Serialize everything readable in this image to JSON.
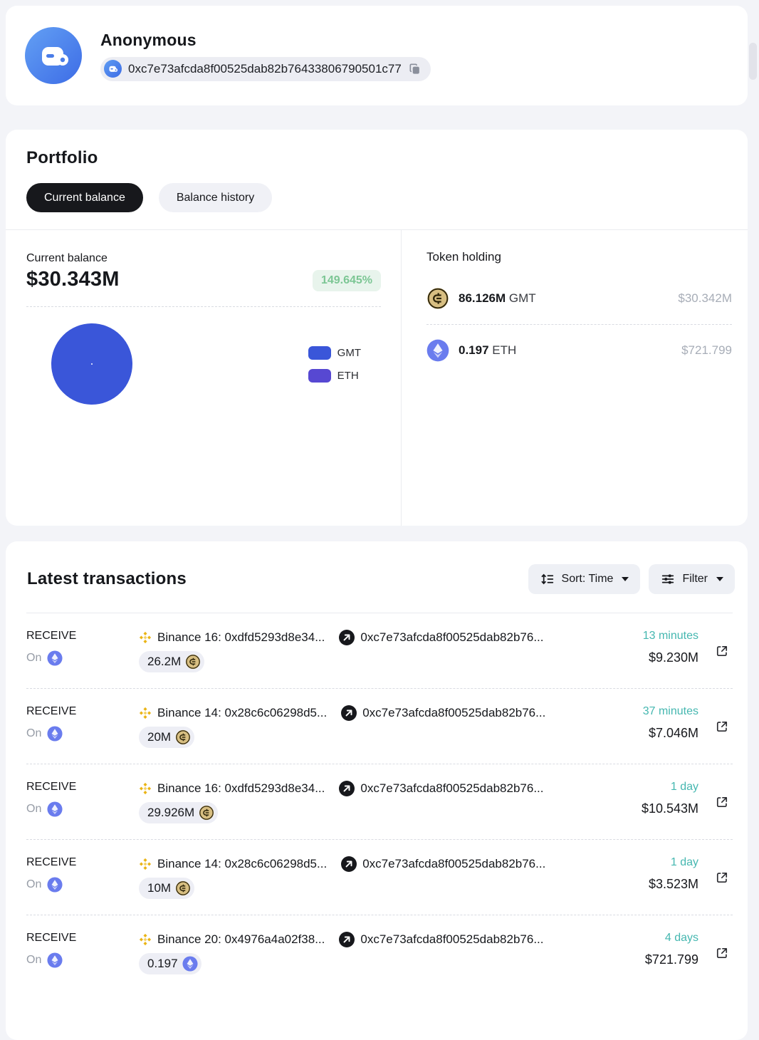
{
  "header": {
    "title": "Anonymous",
    "address": "0xc7e73afcda8f00525dab82b76433806790501c77"
  },
  "portfolio": {
    "title": "Portfolio",
    "tabs": [
      {
        "label": "Current balance"
      },
      {
        "label": "Balance history"
      }
    ],
    "current_balance": {
      "label": "Current balance",
      "value": "$30.343M",
      "change": "149.645%"
    },
    "legend": [
      {
        "label": "GMT",
        "color": "#3a56d9"
      },
      {
        "label": "ETH",
        "color": "#5748d2"
      }
    ],
    "token_holding": {
      "title": "Token holding",
      "tokens": [
        {
          "amount": "86.126M",
          "symbol": "GMT",
          "value": "$30.342M",
          "icon": "gmt-coin-icon"
        },
        {
          "amount": "0.197",
          "symbol": "ETH",
          "value": "$721.799",
          "icon": "eth-coin-icon"
        }
      ]
    }
  },
  "chart_data": {
    "type": "pie",
    "title": "Current balance composition",
    "categories": [
      "GMT",
      "ETH"
    ],
    "values": [
      30342000,
      721.799
    ],
    "colors": [
      "#3a56d9",
      "#5748d2"
    ],
    "legend_position": "right",
    "donut": true
  },
  "transactions": {
    "title": "Latest transactions",
    "sort_label": "Sort: Time",
    "filter_label": "Filter",
    "rows": [
      {
        "type": "RECEIVE",
        "on_label": "On",
        "from": "Binance 16: 0xdfd5293d8e34...",
        "to": "0xc7e73afcda8f00525dab82b76...",
        "amount": "26.2M",
        "token": "GMT",
        "time": "13 minutes",
        "value": "$9.230M"
      },
      {
        "type": "RECEIVE",
        "on_label": "On",
        "from": "Binance 14: 0x28c6c06298d5...",
        "to": "0xc7e73afcda8f00525dab82b76...",
        "amount": "20M",
        "token": "GMT",
        "time": "37 minutes",
        "value": "$7.046M"
      },
      {
        "type": "RECEIVE",
        "on_label": "On",
        "from": "Binance 16: 0xdfd5293d8e34...",
        "to": "0xc7e73afcda8f00525dab82b76...",
        "amount": "29.926M",
        "token": "GMT",
        "time": "1 day",
        "value": "$10.543M"
      },
      {
        "type": "RECEIVE",
        "on_label": "On",
        "from": "Binance 14: 0x28c6c06298d5...",
        "to": "0xc7e73afcda8f00525dab82b76...",
        "amount": "10M",
        "token": "GMT",
        "time": "1 day",
        "value": "$3.523M"
      },
      {
        "type": "RECEIVE",
        "on_label": "On",
        "from": "Binance 20: 0x4976a4a02f38...",
        "to": "0xc7e73afcda8f00525dab82b76...",
        "amount": "0.197",
        "token": "ETH",
        "time": "4 days",
        "value": "$721.799"
      }
    ]
  }
}
